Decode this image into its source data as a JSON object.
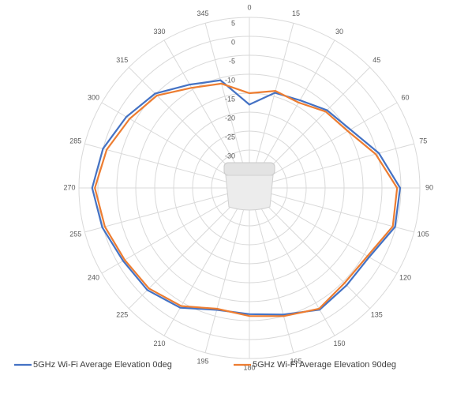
{
  "chart_data": {
    "type": "polar",
    "theta": [
      0,
      15,
      30,
      45,
      60,
      75,
      90,
      105,
      120,
      135,
      150,
      165,
      180,
      195,
      210,
      225,
      240,
      255,
      270,
      285,
      300,
      315,
      330,
      345
    ],
    "rlim": [
      -40,
      5
    ],
    "rticks": [
      5,
      0,
      -5,
      -10,
      -15,
      -20,
      -25,
      -30
    ],
    "grid": true,
    "series": [
      {
        "name": "5GHz Wi-Fi Average Elevation 0deg",
        "color": "#4472c4",
        "values": [
          -18,
          -14,
          -13.3,
          -11,
          -9.2,
          -4.6,
          -0.2,
          -0.2,
          -3.5,
          -3.7,
          -2.9,
          -5.4,
          -6.7,
          -6.7,
          -3.5,
          -1.9,
          -1.5,
          0.2,
          1.5,
          0,
          -2.5,
          -4.8,
          -8.5,
          -10.6
        ]
      },
      {
        "name": "5GHz Wi-Fi Average Elevation 90deg",
        "color": "#ed7d31",
        "values": [
          -15,
          -13.5,
          -14,
          -11.5,
          -10,
          -5.5,
          -1,
          -0.8,
          -4,
          -4.5,
          -3.2,
          -5,
          -6.2,
          -7,
          -4,
          -2.5,
          -2,
          -0.5,
          0.8,
          -1,
          -3.5,
          -5.5,
          -9.5,
          -11.5
        ]
      }
    ]
  }
}
